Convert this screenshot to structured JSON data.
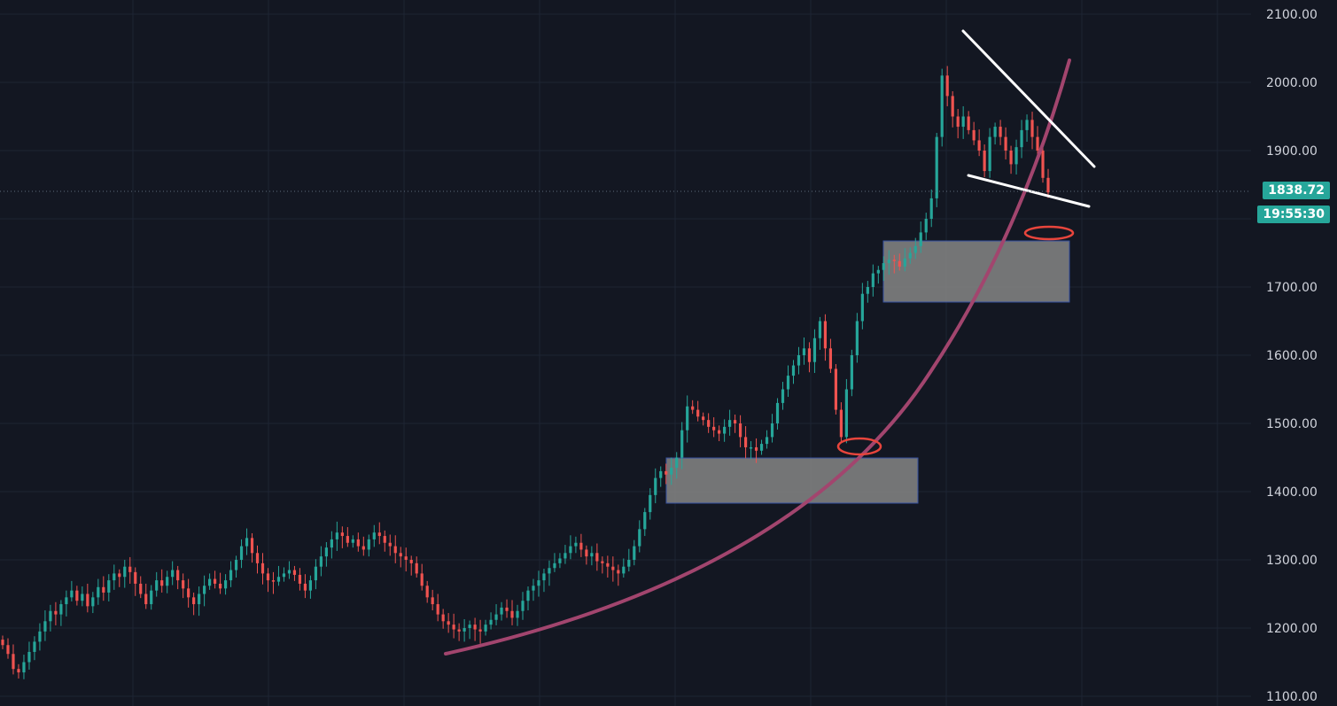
{
  "chart_data": {
    "type": "candlestick",
    "y_axis": {
      "ticks": [
        "2100.00",
        "2000.00",
        "1900.00",
        "1700.00",
        "1600.00",
        "1500.00",
        "1400.00",
        "1300.00",
        "1200.00",
        "1100.00"
      ],
      "range": [
        1100,
        2100
      ],
      "position": "right"
    },
    "last_price": 1838.72,
    "last_price_label": "1838.72",
    "countdown": "19:55:30",
    "grid": true,
    "colors": {
      "background": "#131722",
      "up": "#26a69a",
      "down": "#ef5350",
      "grid": "#1e2433",
      "axis_text": "#d1d4dc",
      "curve": "#a2456e",
      "trendline": "#ffffff",
      "zone_fill": "#808080",
      "zone_border": "#3550a0",
      "ellipse": "#e8453c",
      "price_tag": "#26a69a"
    },
    "candles_close": [
      1175,
      1162,
      1140,
      1135,
      1150,
      1165,
      1180,
      1195,
      1210,
      1225,
      1220,
      1235,
      1245,
      1255,
      1240,
      1250,
      1232,
      1245,
      1260,
      1252,
      1270,
      1280,
      1275,
      1290,
      1282,
      1265,
      1250,
      1235,
      1255,
      1270,
      1262,
      1275,
      1285,
      1270,
      1258,
      1245,
      1235,
      1250,
      1262,
      1272,
      1265,
      1258,
      1270,
      1285,
      1300,
      1320,
      1332,
      1310,
      1295,
      1280,
      1270,
      1268,
      1275,
      1280,
      1285,
      1278,
      1265,
      1255,
      1270,
      1290,
      1305,
      1318,
      1330,
      1340,
      1335,
      1325,
      1330,
      1320,
      1315,
      1330,
      1340,
      1335,
      1325,
      1320,
      1310,
      1305,
      1300,
      1295,
      1280,
      1262,
      1245,
      1235,
      1220,
      1210,
      1205,
      1198,
      1195,
      1200,
      1205,
      1198,
      1195,
      1205,
      1212,
      1220,
      1230,
      1225,
      1215,
      1225,
      1240,
      1255,
      1262,
      1270,
      1280,
      1288,
      1295,
      1302,
      1310,
      1320,
      1325,
      1315,
      1305,
      1310,
      1298,
      1295,
      1290,
      1285,
      1280,
      1290,
      1300,
      1320,
      1345,
      1370,
      1395,
      1420,
      1430,
      1425,
      1435,
      1450,
      1490,
      1525,
      1520,
      1510,
      1505,
      1495,
      1490,
      1485,
      1495,
      1505,
      1500,
      1480,
      1465,
      1465,
      1460,
      1470,
      1480,
      1500,
      1530,
      1550,
      1570,
      1585,
      1600,
      1610,
      1590,
      1625,
      1650,
      1610,
      1580,
      1520,
      1480,
      1550,
      1600,
      1650,
      1690,
      1700,
      1720,
      1725,
      1735,
      1740,
      1738,
      1730,
      1742,
      1750,
      1760,
      1780,
      1800,
      1830,
      1920,
      2010,
      1980,
      1950,
      1935,
      1950,
      1930,
      1915,
      1900,
      1870,
      1920,
      1935,
      1920,
      1900,
      1880,
      1905,
      1930,
      1945,
      1920,
      1900,
      1860,
      1838.72
    ]
  }
}
